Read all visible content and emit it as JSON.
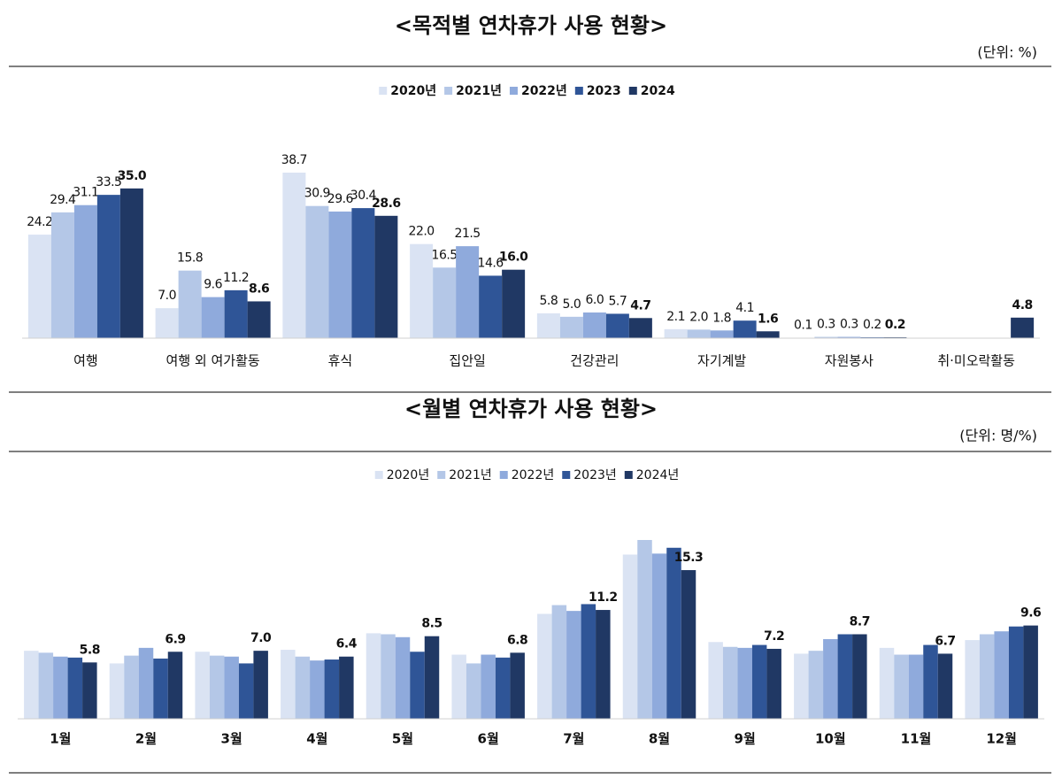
{
  "chart_data": [
    {
      "type": "bar",
      "title": "<목적별 연차휴가 사용 현황>",
      "subtitle": "(단위: %)",
      "categories": [
        "여행",
        "여행 외 여가활동",
        "휴식",
        "집안일",
        "건강관리",
        "자기계발",
        "자원봉사",
        "취·미오락활동"
      ],
      "series": [
        {
          "name": "2020년",
          "color": "#dae3f3",
          "values": [
            24.2,
            7.0,
            38.7,
            22.0,
            5.8,
            2.1,
            0.1,
            null
          ],
          "value_labels": [
            "24.2",
            "7.0",
            "38.7",
            "22.0",
            "5.8",
            "2.1",
            "0.1",
            null
          ]
        },
        {
          "name": "2021년",
          "color": "#b4c7e7",
          "values": [
            29.4,
            15.8,
            30.9,
            16.5,
            5.0,
            2.0,
            0.3,
            null
          ],
          "value_labels": [
            "29.4",
            "15.8",
            "30.9",
            "16.5",
            "5.0",
            "2.0",
            "0.3",
            null
          ]
        },
        {
          "name": "2022년",
          "color": "#8faadc",
          "values": [
            31.1,
            9.6,
            29.6,
            21.5,
            6.0,
            1.8,
            0.3,
            null
          ],
          "value_labels": [
            "31.1",
            "9.6",
            "29.6",
            "21.5",
            "6.0",
            "1.8",
            "0.3",
            null
          ]
        },
        {
          "name": "2023",
          "color": "#2f5597",
          "values": [
            33.5,
            11.2,
            30.4,
            14.6,
            5.7,
            4.1,
            0.2,
            null
          ],
          "value_labels": [
            "33.5",
            "11.2",
            "30.4",
            "14.6",
            "5.7",
            "4.1",
            "0.2",
            null
          ]
        },
        {
          "name": "2024",
          "color": "#203864",
          "values": [
            35.0,
            8.6,
            28.6,
            16.0,
            4.7,
            1.6,
            0.2,
            4.8
          ],
          "value_labels": [
            "35.0",
            "8.6",
            "28.6",
            "16.0",
            "4.7",
            "1.6",
            "0.2",
            "4.8"
          ]
        }
      ]
    },
    {
      "type": "bar",
      "title": "<월별 연차휴가 사용 현황>",
      "subtitle": "(단위: 명/%)",
      "categories": [
        "1월",
        "2월",
        "3월",
        "4월",
        "5월",
        "6월",
        "7월",
        "8월",
        "9월",
        "10월",
        "11월",
        "12월"
      ],
      "series": [
        {
          "name": "2020년",
          "color": "#dae3f3",
          "values": [
            7.0,
            5.7,
            6.9,
            7.1,
            8.8,
            6.6,
            10.8,
            16.9,
            7.9,
            6.7,
            7.3,
            8.1
          ]
        },
        {
          "name": "2021년",
          "color": "#b4c7e7",
          "values": [
            6.8,
            6.5,
            6.5,
            6.4,
            8.7,
            5.7,
            11.7,
            18.4,
            7.4,
            7.0,
            6.6,
            8.7
          ]
        },
        {
          "name": "2022년",
          "color": "#8faadc",
          "values": [
            6.4,
            7.3,
            6.4,
            6.0,
            8.4,
            6.6,
            11.1,
            17.0,
            7.3,
            8.2,
            6.6,
            9.0
          ]
        },
        {
          "name": "2023년",
          "color": "#2f5597",
          "values": [
            6.3,
            6.2,
            5.7,
            6.1,
            6.9,
            6.3,
            11.8,
            17.6,
            7.6,
            8.7,
            7.6,
            9.5
          ]
        },
        {
          "name": "2024년",
          "color": "#203864",
          "values": [
            5.8,
            6.9,
            7.0,
            6.4,
            8.5,
            6.8,
            11.2,
            15.3,
            7.2,
            8.7,
            6.7,
            9.6
          ],
          "value_labels": [
            "5.8",
            "6.9",
            "7.0",
            "6.4",
            "8.5",
            "6.8",
            "11.2",
            "15.3",
            "7.2",
            "8.7",
            "6.7",
            "9.6"
          ]
        }
      ]
    }
  ]
}
